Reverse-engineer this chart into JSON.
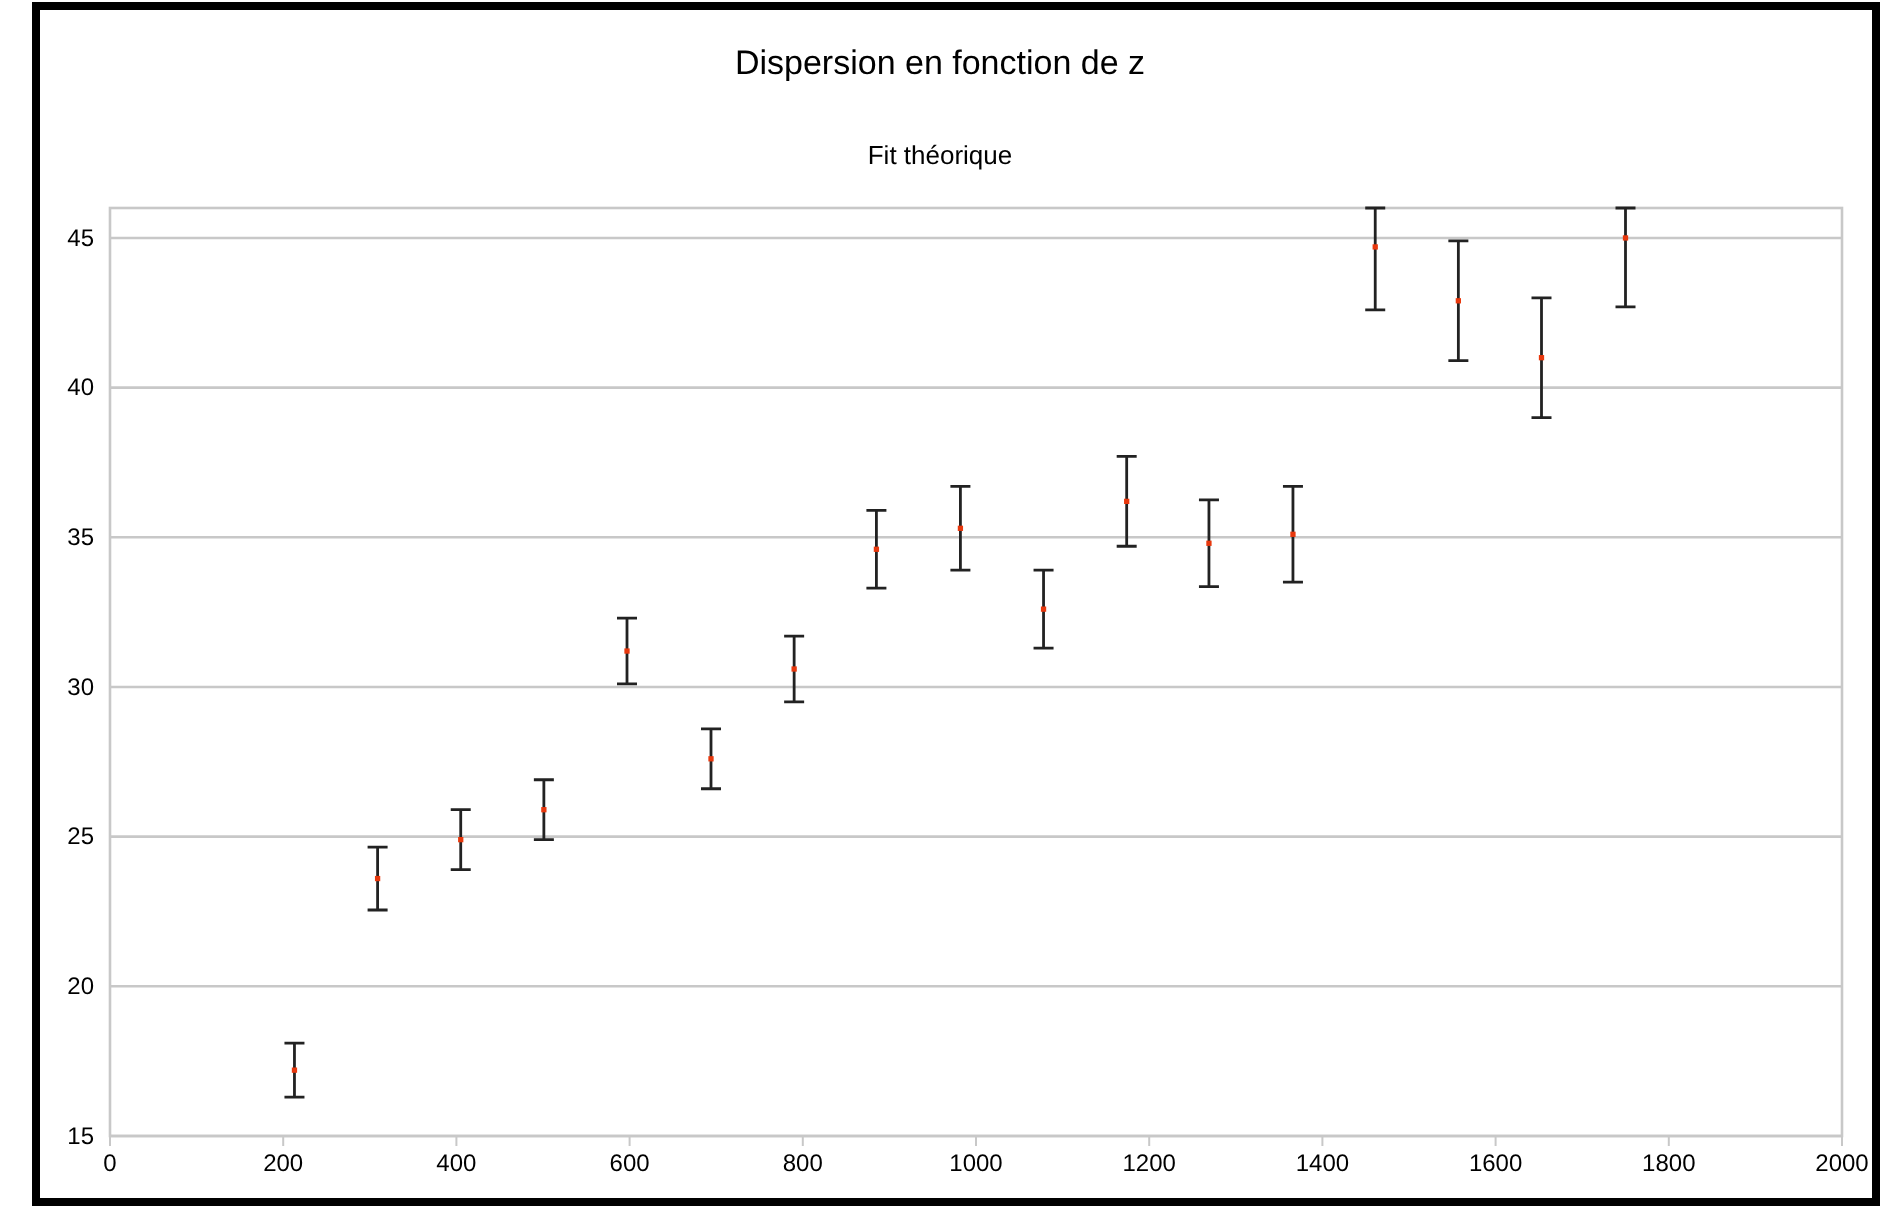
{
  "chart_data": {
    "type": "scatter",
    "title": "Dispersion en fonction de z",
    "subtitle": "Fit théorique",
    "x": [
      213,
      309,
      405,
      501,
      597,
      694,
      790,
      885,
      982,
      1078,
      1174,
      1269,
      1366,
      1461,
      1557,
      1653,
      1750
    ],
    "series": [
      {
        "color": "#e8380d",
        "values": [
          17.2,
          23.6,
          24.9,
          25.9,
          31.2,
          27.6,
          30.6,
          34.6,
          35.3,
          32.6,
          36.2,
          34.8,
          35.1,
          44.7,
          42.9,
          41.0,
          45.0
        ],
        "errors": [
          0.9,
          1.05,
          1.0,
          1.0,
          1.1,
          1.0,
          1.1,
          1.3,
          1.4,
          1.3,
          1.5,
          1.45,
          1.6,
          [
            42.6,
            46
          ],
          2.0,
          2.0,
          [
            42.7,
            46
          ]
        ]
      }
    ],
    "xlim": [
      0,
      2000
    ],
    "xticks": [
      0,
      200,
      400,
      600,
      800,
      1000,
      1200,
      1400,
      1600,
      1800,
      2000
    ],
    "ylim": [
      15,
      46
    ],
    "yticks": [
      15,
      20,
      25,
      30,
      35,
      40,
      45
    ],
    "grid": "y",
    "marker": "square"
  }
}
